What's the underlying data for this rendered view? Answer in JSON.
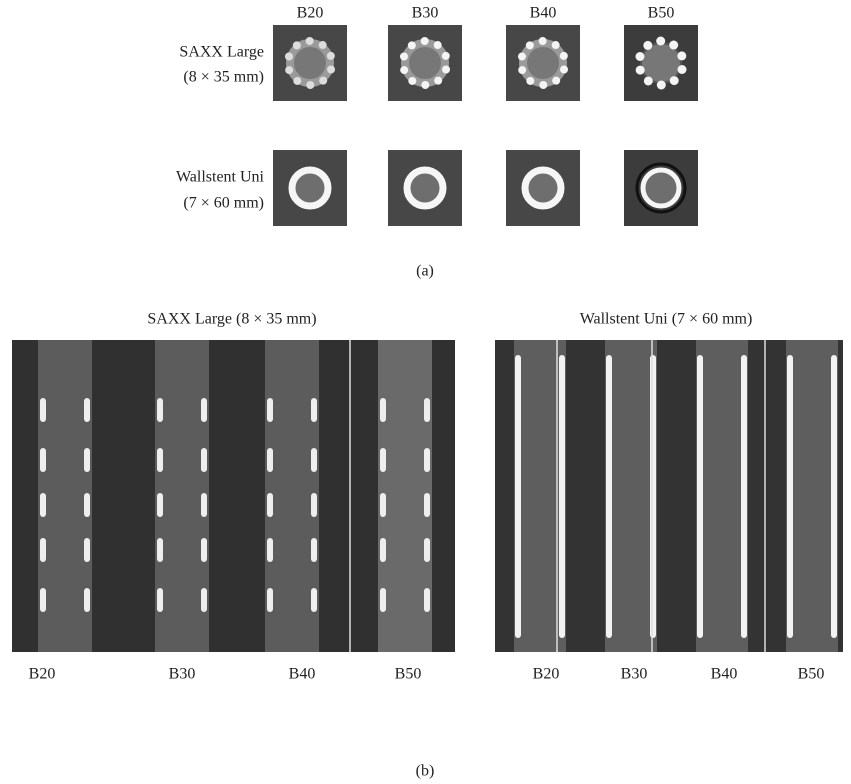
{
  "panel_a": {
    "columns": [
      "B20",
      "B30",
      "B40",
      "B50"
    ],
    "rows": [
      {
        "name": "SAXX Large",
        "size": "(8 × 35 mm)"
      },
      {
        "name": "Wallstent Uni",
        "size": "(7 × 60 mm)"
      }
    ],
    "caption": "(a)"
  },
  "panel_b": {
    "panels": [
      {
        "title": "SAXX Large (8 × 35 mm)",
        "labels": [
          "B20",
          "B30",
          "B40",
          "B50"
        ]
      },
      {
        "title": "Wallstent Uni (7 × 60 mm)",
        "labels": [
          "B20",
          "B30",
          "B40",
          "B50"
        ]
      }
    ],
    "caption": "(b)"
  }
}
